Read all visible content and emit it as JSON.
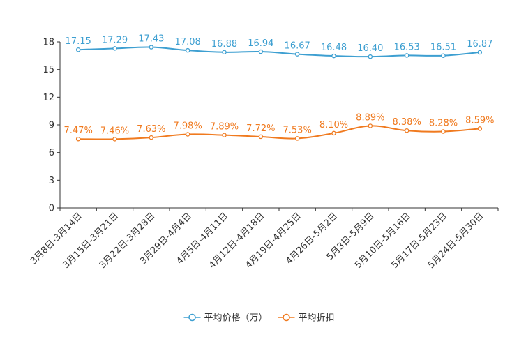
{
  "chart_data": {
    "type": "line",
    "title": "",
    "xlabel": "",
    "ylabel": "",
    "ylim": [
      0,
      18
    ],
    "yticks": [
      0,
      3,
      6,
      9,
      12,
      15,
      18
    ],
    "grid": false,
    "legend_position": "bottom-center",
    "categories": [
      "3月8日-3月14日",
      "3月15日-3月21日",
      "3月22日-3月28日",
      "3月29日-4月4日",
      "4月5日-4月11日",
      "4月12日-4月18日",
      "4月19日-4月25日",
      "4月26日-5月2日",
      "5月3日-5月9日",
      "5月10日-5月16日",
      "5月17日-5月23日",
      "5月24日-5月30日"
    ],
    "series": [
      {
        "name": "平均价格（万）",
        "color": "#3d9fd1",
        "values": [
          17.15,
          17.29,
          17.43,
          17.08,
          16.88,
          16.94,
          16.67,
          16.48,
          16.4,
          16.53,
          16.51,
          16.87
        ],
        "labels": [
          "17.15",
          "17.29",
          "17.43",
          "17.08",
          "16.88",
          "16.94",
          "16.67",
          "16.48",
          "16.40",
          "16.53",
          "16.51",
          "16.87"
        ]
      },
      {
        "name": "平均折扣",
        "color": "#f07a1f",
        "values": [
          7.47,
          7.46,
          7.63,
          7.98,
          7.89,
          7.72,
          7.53,
          8.1,
          8.89,
          8.38,
          8.28,
          8.59
        ],
        "labels": [
          "7.47%",
          "7.46%",
          "7.63%",
          "7.98%",
          "7.89%",
          "7.72%",
          "7.53%",
          "8.10%",
          "8.89%",
          "8.38%",
          "8.28%",
          "8.59%"
        ]
      }
    ]
  }
}
